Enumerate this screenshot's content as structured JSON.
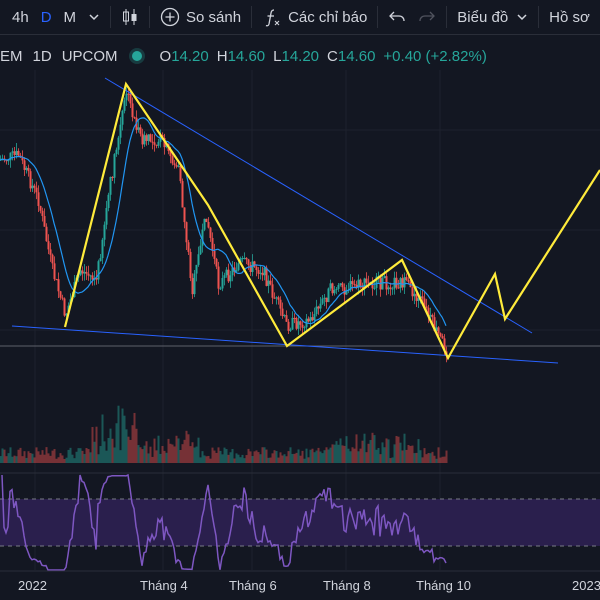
{
  "toolbar": {
    "intervals": [
      "4h",
      "D",
      "M"
    ],
    "active_interval": "D",
    "compare_label": "So sánh",
    "indicators_label": "Các chỉ báo",
    "chart_type_label": "Biểu đồ",
    "profile_label": "Hồ sơ"
  },
  "legend": {
    "symbol_parts": [
      "EM",
      "1D",
      "UPCOM"
    ],
    "open_key": "O",
    "open": "14.20",
    "high_key": "H",
    "high": "14.60",
    "low_key": "L",
    "low": "14.20",
    "close_key": "C",
    "close": "14.60",
    "change": "+0.40 (+2.82%)",
    "status_color": "#26a69a",
    "up_color": "#26a69a",
    "down_color": "#ef5350"
  },
  "time_axis": [
    "2022",
    "Tháng 4",
    "Tháng 6",
    "Tháng 8",
    "Tháng 10",
    "2023"
  ],
  "colors": {
    "pattern": "#ffeb3b",
    "trendline": "#2962ff",
    "ma": "#2196f3",
    "rsi": "#7e57c2",
    "rsi_band": "#2a1f4d"
  }
}
